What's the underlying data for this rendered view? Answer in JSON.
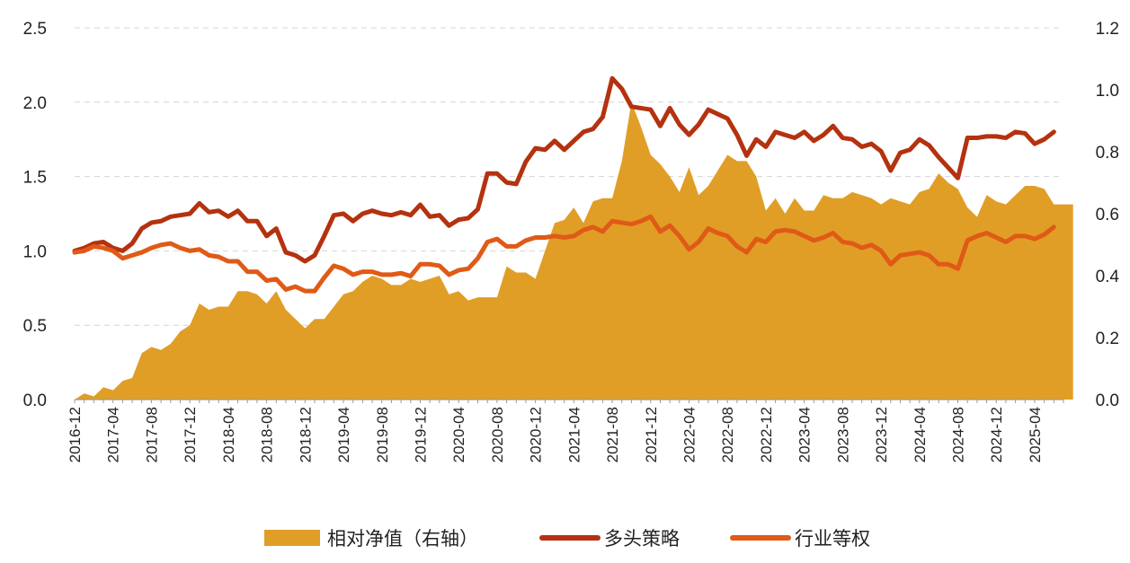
{
  "chart_data": {
    "type": "line",
    "title": "",
    "xlabel": "",
    "ylabel": "",
    "y_left": {
      "min": 0,
      "max": 2.5,
      "ticks": [
        0.0,
        0.5,
        1.0,
        1.5,
        2.0,
        2.5
      ],
      "tick_labels": [
        "0.0",
        "0.5",
        "1.0",
        "1.5",
        "2.0",
        "2.5"
      ]
    },
    "y_right": {
      "min": 0,
      "max": 1.2,
      "ticks": [
        0.0,
        0.2,
        0.4,
        0.6,
        0.8,
        1.0,
        1.2
      ],
      "tick_labels": [
        "0.0",
        "0.2",
        "0.4",
        "0.6",
        "0.8",
        "1.0",
        "1.2"
      ]
    },
    "x_start": "2016-12",
    "x_end": "2025-07",
    "x_tick_labels": [
      "2016-12",
      "2017-04",
      "2017-08",
      "2017-12",
      "2018-04",
      "2018-08",
      "2018-12",
      "2019-04",
      "2019-08",
      "2019-12",
      "2020-04",
      "2020-08",
      "2020-12",
      "2021-04",
      "2021-08",
      "2021-12",
      "2022-04",
      "2022-08",
      "2022-12",
      "2023-04",
      "2023-08",
      "2023-12",
      "2024-04",
      "2024-08",
      "2024-12",
      "2025-04"
    ],
    "grid": "horizontal-dashed",
    "legend_position": "bottom",
    "series": [
      {
        "name": "相对净值（右轴）",
        "type": "area",
        "axis": "right",
        "color": "#E09E26",
        "values": [
          0.0,
          0.02,
          0.01,
          0.04,
          0.03,
          0.06,
          0.07,
          0.15,
          0.17,
          0.16,
          0.18,
          0.22,
          0.24,
          0.31,
          0.29,
          0.3,
          0.3,
          0.35,
          0.35,
          0.34,
          0.31,
          0.35,
          0.29,
          0.26,
          0.23,
          0.26,
          0.26,
          0.3,
          0.34,
          0.35,
          0.38,
          0.4,
          0.39,
          0.37,
          0.37,
          0.39,
          0.38,
          0.39,
          0.4,
          0.34,
          0.35,
          0.32,
          0.33,
          0.33,
          0.33,
          0.43,
          0.41,
          0.41,
          0.39,
          0.48,
          0.57,
          0.58,
          0.62,
          0.57,
          0.64,
          0.65,
          0.65,
          0.77,
          0.96,
          0.88,
          0.79,
          0.76,
          0.72,
          0.67,
          0.75,
          0.66,
          0.69,
          0.74,
          0.79,
          0.77,
          0.77,
          0.72,
          0.61,
          0.65,
          0.6,
          0.65,
          0.61,
          0.61,
          0.66,
          0.65,
          0.65,
          0.67,
          0.66,
          0.65,
          0.63,
          0.65,
          0.64,
          0.63,
          0.67,
          0.68,
          0.73,
          0.7,
          0.68,
          0.62,
          0.59,
          0.66,
          0.64,
          0.63,
          0.66,
          0.69,
          0.69,
          0.68,
          0.63,
          0.63,
          0.63
        ]
      },
      {
        "name": "多头策略",
        "type": "line",
        "axis": "left",
        "color": "#B4320F",
        "values": [
          1.0,
          1.02,
          1.05,
          1.06,
          1.02,
          1.0,
          1.05,
          1.15,
          1.19,
          1.2,
          1.23,
          1.24,
          1.25,
          1.32,
          1.26,
          1.27,
          1.23,
          1.27,
          1.2,
          1.2,
          1.1,
          1.15,
          0.99,
          0.97,
          0.93,
          0.97,
          1.1,
          1.24,
          1.25,
          1.2,
          1.25,
          1.27,
          1.25,
          1.24,
          1.26,
          1.24,
          1.31,
          1.23,
          1.24,
          1.17,
          1.21,
          1.22,
          1.28,
          1.52,
          1.52,
          1.46,
          1.45,
          1.6,
          1.69,
          1.68,
          1.74,
          1.68,
          1.74,
          1.8,
          1.82,
          1.9,
          2.16,
          2.09,
          1.97,
          1.96,
          1.95,
          1.84,
          1.96,
          1.85,
          1.78,
          1.85,
          1.95,
          1.92,
          1.89,
          1.78,
          1.64,
          1.75,
          1.7,
          1.8,
          1.78,
          1.76,
          1.8,
          1.74,
          1.78,
          1.84,
          1.76,
          1.75,
          1.7,
          1.72,
          1.67,
          1.54,
          1.66,
          1.68,
          1.75,
          1.71,
          1.63,
          1.56,
          1.49,
          1.76,
          1.76,
          1.77,
          1.77,
          1.76,
          1.8,
          1.79,
          1.72,
          1.75,
          1.8
        ]
      },
      {
        "name": "行业等权",
        "type": "line",
        "axis": "left",
        "color": "#E05A17",
        "values": [
          0.99,
          1.0,
          1.03,
          1.02,
          1.0,
          0.95,
          0.97,
          0.99,
          1.02,
          1.04,
          1.05,
          1.02,
          1.0,
          1.01,
          0.97,
          0.96,
          0.93,
          0.93,
          0.86,
          0.86,
          0.8,
          0.81,
          0.74,
          0.76,
          0.73,
          0.73,
          0.82,
          0.9,
          0.88,
          0.84,
          0.86,
          0.86,
          0.84,
          0.84,
          0.85,
          0.83,
          0.91,
          0.91,
          0.9,
          0.84,
          0.87,
          0.88,
          0.95,
          1.06,
          1.08,
          1.03,
          1.03,
          1.07,
          1.09,
          1.09,
          1.1,
          1.09,
          1.1,
          1.14,
          1.16,
          1.13,
          1.2,
          1.19,
          1.18,
          1.2,
          1.23,
          1.13,
          1.17,
          1.1,
          1.01,
          1.06,
          1.15,
          1.12,
          1.1,
          1.03,
          0.99,
          1.08,
          1.06,
          1.13,
          1.14,
          1.13,
          1.1,
          1.07,
          1.09,
          1.12,
          1.06,
          1.05,
          1.02,
          1.04,
          1.0,
          0.91,
          0.97,
          0.98,
          0.99,
          0.97,
          0.91,
          0.91,
          0.88,
          1.07,
          1.1,
          1.12,
          1.09,
          1.06,
          1.1,
          1.1,
          1.08,
          1.11,
          1.16
        ]
      }
    ]
  }
}
